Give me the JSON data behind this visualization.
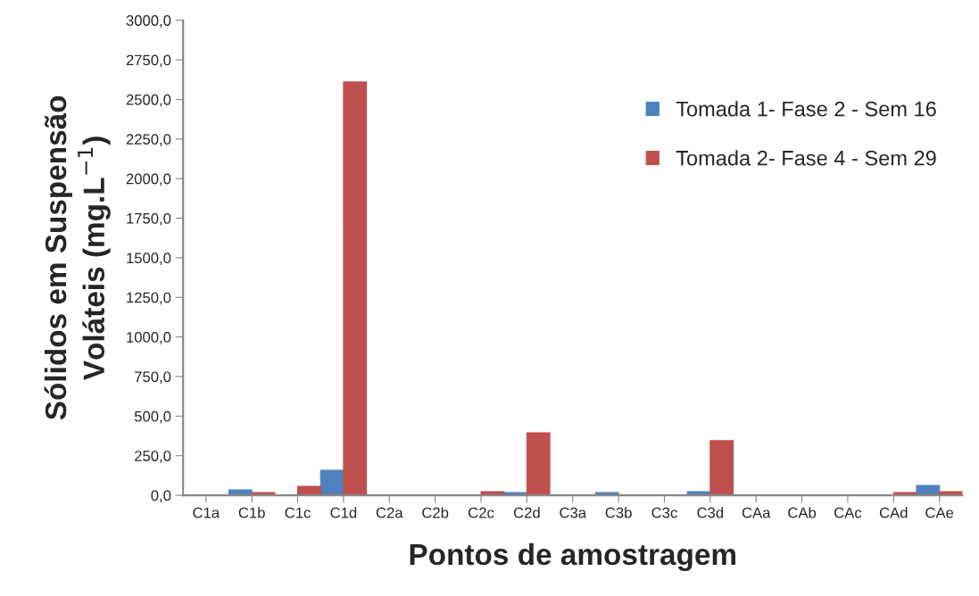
{
  "chart_data": {
    "type": "bar",
    "xlabel": "Pontos de amostragem",
    "ylabel": "Sólidos em Suspensão\nVoláteis (mg.L$^{−1}$)",
    "categories": [
      "C1a",
      "C1b",
      "C1c",
      "C1d",
      "C2a",
      "C2b",
      "C2c",
      "C2d",
      "C3a",
      "C3b",
      "C3c",
      "C3d",
      "CAa",
      "CAb",
      "CAc",
      "CAd",
      "CAe"
    ],
    "series": [
      {
        "name": "Tomada 1- Fase 2 - Sem 16",
        "color": "#4f81bd",
        "values": [
          0,
          34,
          2,
          158,
          3,
          0,
          0,
          17,
          0,
          17,
          0,
          23,
          2,
          0,
          2,
          0,
          62
        ]
      },
      {
        "name": "Tomada 2- Fase 4 - Sem 29",
        "color": "#c0504d",
        "values": [
          2,
          17,
          56,
          2610,
          0,
          0,
          23,
          395,
          0,
          0,
          2,
          345,
          0,
          0,
          0,
          17,
          23
        ]
      }
    ],
    "ylim": [
      0,
      3000
    ],
    "yticks": [
      {
        "value": 0,
        "label": "0,0"
      },
      {
        "value": 250,
        "label": "250,0"
      },
      {
        "value": 500,
        "label": "500,0"
      },
      {
        "value": 750,
        "label": "750,0"
      },
      {
        "value": 1000,
        "label": "1000,0"
      },
      {
        "value": 1250,
        "label": "1250,0"
      },
      {
        "value": 1500,
        "label": "1500,0"
      },
      {
        "value": 1750,
        "label": "1750,0"
      },
      {
        "value": 2000,
        "label": "2000,0"
      },
      {
        "value": 2250,
        "label": "2250,0"
      },
      {
        "value": 2500,
        "label": "2500,0"
      },
      {
        "value": 2750,
        "label": "2750,0"
      },
      {
        "value": 3000,
        "label": "3000,0"
      }
    ],
    "grid": false,
    "legend": "right"
  }
}
